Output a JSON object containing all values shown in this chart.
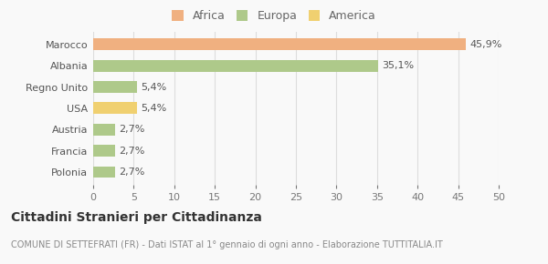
{
  "categories": [
    "Polonia",
    "Francia",
    "Austria",
    "USA",
    "Regno Unito",
    "Albania",
    "Marocco"
  ],
  "values": [
    2.7,
    2.7,
    2.7,
    5.4,
    5.4,
    35.1,
    45.9
  ],
  "labels": [
    "2,7%",
    "2,7%",
    "2,7%",
    "5,4%",
    "5,4%",
    "35,1%",
    "45,9%"
  ],
  "colors": [
    "#aec98a",
    "#aec98a",
    "#aec98a",
    "#f0d070",
    "#aec98a",
    "#aec98a",
    "#f0b080"
  ],
  "legend": [
    {
      "label": "Africa",
      "color": "#f0b080"
    },
    {
      "label": "Europa",
      "color": "#aec98a"
    },
    {
      "label": "America",
      "color": "#f0d070"
    }
  ],
  "xlim": [
    0,
    50
  ],
  "xticks": [
    0,
    5,
    10,
    15,
    20,
    25,
    30,
    35,
    40,
    45,
    50
  ],
  "title": "Cittadini Stranieri per Cittadinanza",
  "subtitle": "COMUNE DI SETTEFRATI (FR) - Dati ISTAT al 1° gennaio di ogni anno - Elaborazione TUTTITALIA.IT",
  "bg_color": "#f9f9f9",
  "grid_color": "#dddddd",
  "bar_height": 0.55,
  "label_fontsize": 8,
  "ytick_fontsize": 8,
  "xtick_fontsize": 8,
  "title_fontsize": 10,
  "subtitle_fontsize": 7
}
